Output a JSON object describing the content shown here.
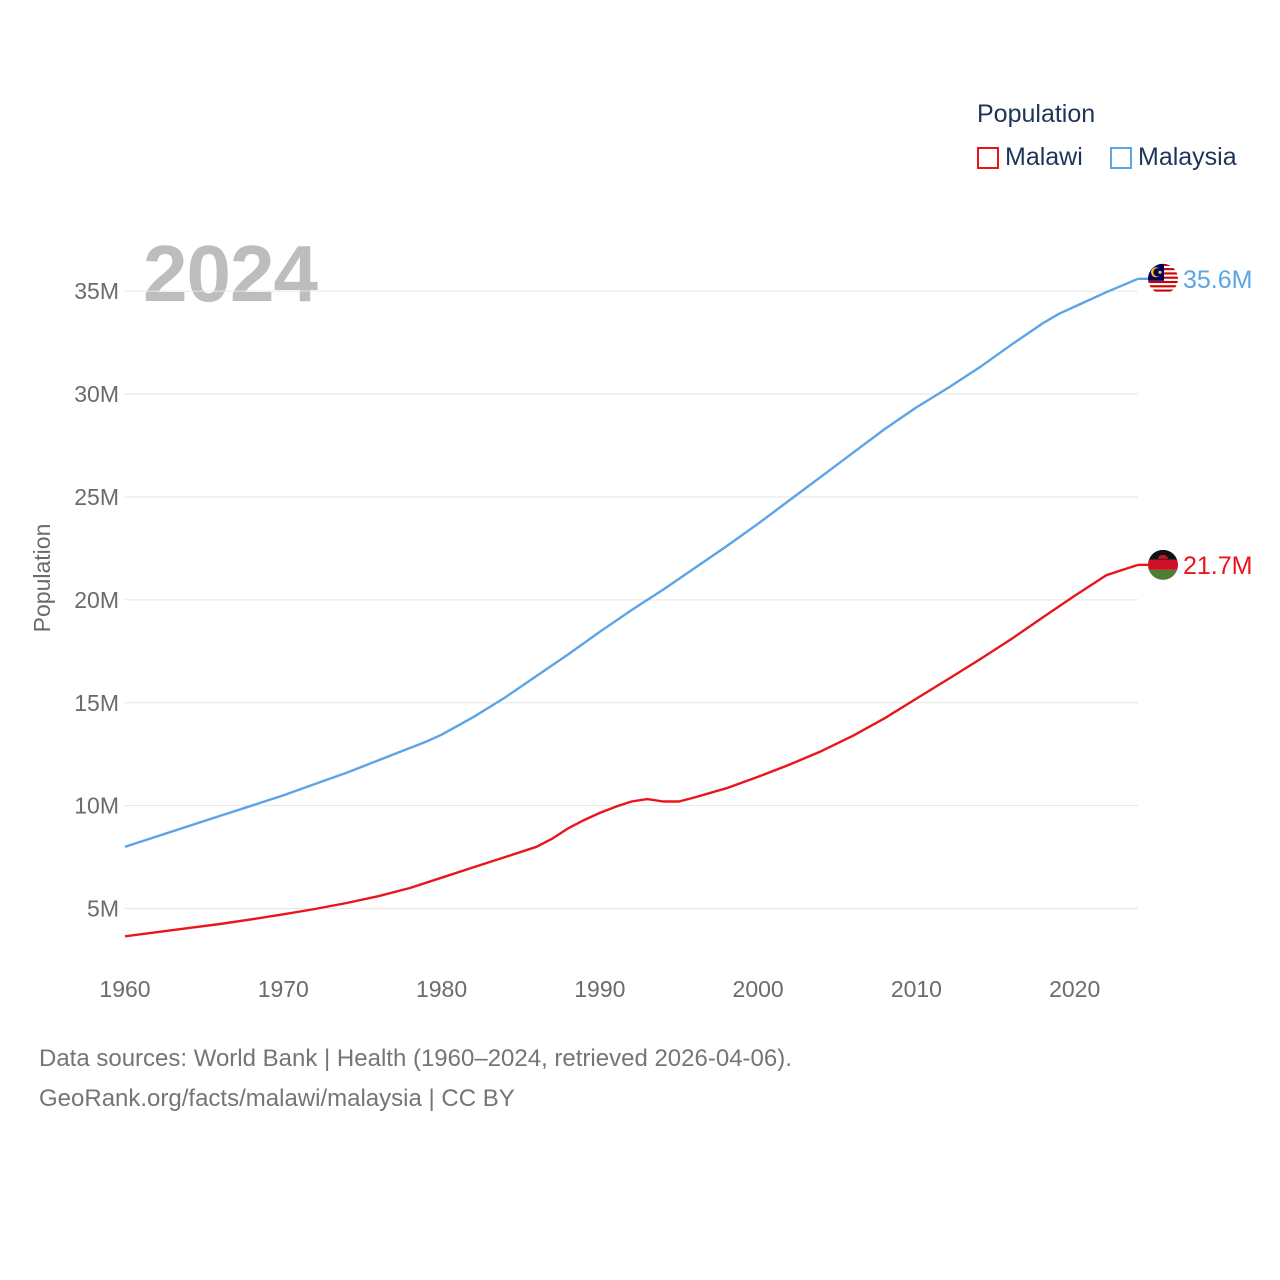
{
  "legend": {
    "title": "Population",
    "items": [
      {
        "label": "Malawi",
        "color": "#e8161c"
      },
      {
        "label": "Malaysia",
        "color": "#5ba5e6"
      }
    ]
  },
  "current_year": "2024",
  "footer": {
    "line1": "Data sources: World Bank | Health (1960–2024, retrieved 2026-04-06).",
    "line2": "GeoRank.org/facts/malawi/malaysia | CC BY"
  },
  "chart_data": {
    "type": "line",
    "title": "Population",
    "ylabel": "Population",
    "xlabel": "",
    "xlim": [
      1960,
      2024
    ],
    "ylim": [
      2500000,
      37000000
    ],
    "x_ticks": [
      1960,
      1970,
      1980,
      1990,
      2000,
      2010,
      2020
    ],
    "y_ticks": [
      {
        "value": 5000000,
        "label": "5M"
      },
      {
        "value": 10000000,
        "label": "10M"
      },
      {
        "value": 15000000,
        "label": "15M"
      },
      {
        "value": 20000000,
        "label": "20M"
      },
      {
        "value": 25000000,
        "label": "25M"
      },
      {
        "value": 30000000,
        "label": "30M"
      },
      {
        "value": 35000000,
        "label": "35M"
      }
    ],
    "grid": true,
    "series": [
      {
        "name": "Malawi",
        "color": "#e8161c",
        "end_label": "21.7M",
        "flag": "malawi-flag",
        "x": [
          1960,
          1962,
          1964,
          1966,
          1968,
          1970,
          1972,
          1974,
          1976,
          1978,
          1980,
          1982,
          1984,
          1986,
          1987,
          1988,
          1989,
          1990,
          1991,
          1992,
          1993,
          1994,
          1995,
          1996,
          1998,
          2000,
          2002,
          2004,
          2006,
          2008,
          2010,
          2012,
          2014,
          2016,
          2018,
          2020,
          2022,
          2024
        ],
        "values": [
          3650000,
          3850000,
          4050000,
          4250000,
          4480000,
          4720000,
          4980000,
          5270000,
          5600000,
          6000000,
          6500000,
          7000000,
          7500000,
          8000000,
          8400000,
          8900000,
          9300000,
          9650000,
          9950000,
          10200000,
          10320000,
          10200000,
          10200000,
          10400000,
          10850000,
          11400000,
          12000000,
          12650000,
          13400000,
          14250000,
          15200000,
          16150000,
          17100000,
          18100000,
          19150000,
          20200000,
          21200000,
          21700000
        ]
      },
      {
        "name": "Malaysia",
        "color": "#5ba5e6",
        "end_label": "35.6M",
        "flag": "malaysia-flag",
        "x": [
          1960,
          1962,
          1964,
          1966,
          1968,
          1970,
          1972,
          1974,
          1976,
          1978,
          1979,
          1980,
          1982,
          1984,
          1986,
          1988,
          1990,
          1992,
          1994,
          1996,
          1998,
          2000,
          2002,
          2004,
          2006,
          2008,
          2010,
          2012,
          2014,
          2016,
          2018,
          2019,
          2020,
          2022,
          2024
        ],
        "values": [
          8000000,
          8500000,
          9000000,
          9500000,
          10000000,
          10500000,
          11050000,
          11600000,
          12200000,
          12800000,
          13100000,
          13450000,
          14300000,
          15250000,
          16300000,
          17350000,
          18450000,
          19500000,
          20500000,
          21550000,
          22600000,
          23700000,
          24850000,
          26000000,
          27150000,
          28300000,
          29350000,
          30300000,
          31300000,
          32400000,
          33450000,
          33900000,
          34250000,
          34950000,
          35600000
        ]
      }
    ]
  }
}
